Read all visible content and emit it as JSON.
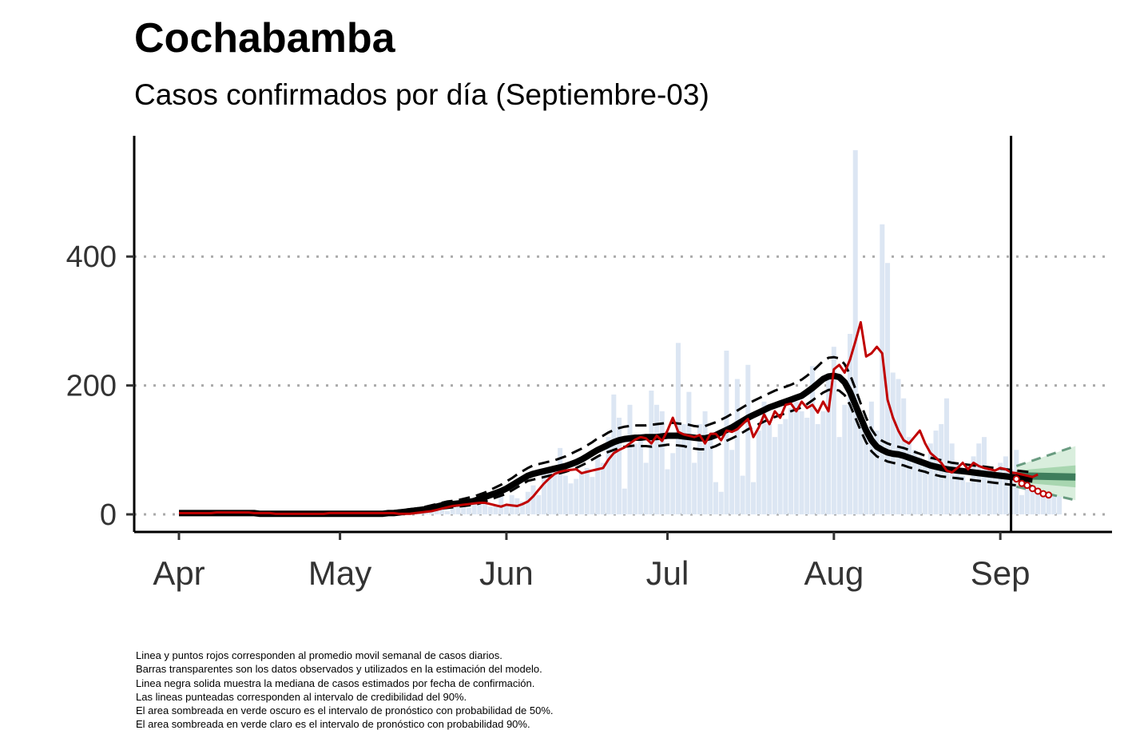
{
  "title": "Cochabamba",
  "subtitle": "Casos confirmados por día (Septiembre-03)",
  "notes": [
    "Linea y puntos rojos corresponden al promedio movil semanal de casos diarios.",
    "Barras transparentes son los datos observados y utilizados en la estimación del modelo.",
    "Linea negra solida muestra la mediana de casos estimados por fecha de confirmación.",
    "Las lineas punteadas corresponden al intervalo de credibilidad del 90%.",
    "El area sombreada en verde oscuro es el intervalo de pronóstico con probabilidad de 50%.",
    "El area sombreada en verde claro es el intervalo de pronóstico con probabilidad 90%."
  ],
  "chart_data": {
    "type": "bar+line",
    "x_axis": {
      "type": "date",
      "ticks": [
        "Apr",
        "May",
        "Jun",
        "Jul",
        "Aug",
        "Sep"
      ],
      "tick_dates": [
        "2020-04-01",
        "2020-05-01",
        "2020-06-01",
        "2020-07-01",
        "2020-08-01",
        "2020-09-01"
      ]
    },
    "y_axis": {
      "ticks": [
        0,
        200,
        400
      ],
      "ylim": [
        -25,
        590
      ]
    },
    "grid": "horizontal dotted",
    "vline_date": "2020-09-03",
    "colors": {
      "bars": "#dce6f3",
      "median": "#000000",
      "ci": "#000000",
      "moving_avg": "#c00000",
      "fc_light": "#d9eedd",
      "fc_mid": "#a8d6b0",
      "fc_dark": "#3e7d5c"
    },
    "bars": {
      "start_date": "2020-04-01",
      "values": [
        1,
        0,
        2,
        0,
        0,
        1,
        3,
        0,
        2,
        1,
        0,
        3,
        2,
        1,
        0,
        2,
        1,
        0,
        1,
        2,
        0,
        1,
        0,
        2,
        1,
        0,
        1,
        0,
        2,
        1,
        1,
        0,
        2,
        1,
        3,
        2,
        0,
        1,
        2,
        0,
        1,
        3,
        2,
        4,
        6,
        8,
        3,
        12,
        10,
        8,
        5,
        14,
        18,
        20,
        10,
        22,
        25,
        18,
        12,
        15,
        28,
        14,
        30,
        25,
        20,
        35,
        45,
        30,
        68,
        65,
        70,
        103,
        60,
        48,
        55,
        66,
        72,
        58,
        90,
        80,
        120,
        186,
        150,
        40,
        170,
        110,
        125,
        80,
        192,
        170,
        160,
        70,
        95,
        266,
        140,
        190,
        80,
        140,
        160,
        120,
        50,
        35,
        254,
        100,
        210,
        60,
        232,
        50,
        130,
        175,
        140,
        120,
        140,
        148,
        165,
        175,
        160,
        150,
        230,
        140,
        160,
        210,
        260,
        120,
        170,
        280,
        565,
        140,
        130,
        175,
        130,
        450,
        390,
        220,
        210,
        180,
        120,
        100,
        90,
        80,
        110,
        130,
        140,
        180,
        110,
        80,
        60,
        50,
        90,
        110,
        120,
        70,
        60,
        80,
        90,
        70,
        100,
        30,
        60,
        50,
        75,
        80,
        70,
        60,
        80
      ],
      "series_name": ""
    },
    "median": {
      "start_date": "2020-04-01",
      "values": [
        2,
        2,
        2,
        2,
        2,
        2,
        2,
        2,
        2,
        2,
        2,
        2,
        2,
        2,
        2,
        1,
        1,
        1,
        1,
        1,
        1,
        1,
        1,
        1,
        1,
        1,
        1,
        1,
        1,
        1,
        1,
        1,
        1,
        1,
        1,
        1,
        1,
        1,
        1,
        2,
        2,
        3,
        4,
        5,
        6,
        7,
        8,
        10,
        12,
        14,
        15,
        16,
        17,
        18,
        19,
        21,
        24,
        27,
        30,
        33,
        36,
        40,
        45,
        50,
        55,
        60,
        63,
        65,
        67,
        69,
        71,
        73,
        75,
        78,
        81,
        85,
        90,
        95,
        100,
        104,
        108,
        112,
        115,
        117,
        118,
        119,
        119,
        120,
        120,
        120,
        121,
        122,
        122,
        122,
        121,
        120,
        119,
        118,
        118,
        120,
        123,
        127,
        131,
        135,
        140,
        145,
        150,
        154,
        158,
        162,
        166,
        169,
        172,
        175,
        178,
        181,
        184,
        190,
        196,
        203,
        210,
        214,
        215,
        213,
        205,
        190,
        170,
        150,
        130,
        115,
        105,
        100,
        96,
        94,
        93,
        91,
        88,
        85,
        82,
        79,
        76,
        74,
        72,
        70,
        69,
        68,
        67,
        66,
        65,
        64,
        63,
        62,
        61,
        60,
        59,
        58,
        57,
        56,
        55,
        54
      ]
    },
    "ci_upper": {
      "start_date": "2020-04-01",
      "values": [
        3,
        3,
        3,
        3,
        3,
        3,
        3,
        3,
        3,
        3,
        3,
        3,
        3,
        3,
        3,
        2,
        2,
        2,
        2,
        2,
        2,
        2,
        2,
        2,
        2,
        2,
        2,
        2,
        2,
        2,
        2,
        2,
        2,
        2,
        2,
        2,
        2,
        2,
        3,
        4,
        5,
        6,
        7,
        8,
        9,
        10,
        12,
        14,
        16,
        18,
        20,
        21,
        22,
        24,
        26,
        28,
        31,
        34,
        38,
        42,
        46,
        51,
        56,
        62,
        67,
        72,
        76,
        78,
        80,
        82,
        84,
        87,
        90,
        94,
        98,
        102,
        107,
        112,
        118,
        122,
        127,
        131,
        134,
        136,
        137,
        138,
        138,
        138,
        139,
        140,
        141,
        142,
        142,
        141,
        140,
        139,
        137,
        136,
        137,
        140,
        143,
        147,
        151,
        156,
        161,
        166,
        171,
        176,
        180,
        184,
        188,
        192,
        195,
        198,
        201,
        205,
        209,
        215,
        222,
        230,
        238,
        243,
        244,
        242,
        233,
        217,
        195,
        172,
        150,
        132,
        120,
        114,
        110,
        107,
        105,
        103,
        100,
        97,
        94,
        91,
        88,
        86,
        84,
        82,
        80,
        79,
        78,
        77,
        76,
        75,
        74,
        73,
        72,
        71,
        70,
        69,
        68,
        67,
        66,
        65
      ]
    },
    "ci_lower": {
      "start_date": "2020-04-01",
      "values": [
        1,
        1,
        1,
        1,
        1,
        1,
        1,
        1,
        1,
        1,
        1,
        1,
        1,
        1,
        1,
        0,
        0,
        0,
        0,
        0,
        0,
        0,
        0,
        0,
        0,
        0,
        0,
        0,
        0,
        0,
        0,
        0,
        0,
        0,
        0,
        0,
        0,
        0,
        0,
        1,
        1,
        1,
        2,
        3,
        4,
        5,
        6,
        7,
        8,
        9,
        10,
        11,
        12,
        13,
        14,
        15,
        17,
        20,
        23,
        26,
        29,
        32,
        37,
        42,
        47,
        52,
        54,
        56,
        58,
        60,
        62,
        64,
        66,
        69,
        72,
        76,
        80,
        85,
        90,
        94,
        97,
        100,
        103,
        105,
        106,
        107,
        106,
        106,
        105,
        106,
        107,
        108,
        108,
        107,
        106,
        104,
        102,
        101,
        101,
        103,
        106,
        110,
        114,
        118,
        122,
        127,
        132,
        136,
        140,
        144,
        148,
        151,
        154,
        157,
        160,
        163,
        166,
        171,
        177,
        183,
        189,
        193,
        194,
        192,
        185,
        170,
        150,
        130,
        112,
        98,
        90,
        86,
        82,
        80,
        78,
        76,
        73,
        71,
        68,
        66,
        63,
        61,
        59,
        58,
        57,
        56,
        55,
        54,
        53,
        52,
        51,
        50,
        49,
        48,
        47,
        46,
        45,
        45,
        44,
        44
      ]
    },
    "moving_avg": {
      "start_date": "2020-04-01",
      "values": [
        2,
        2,
        2,
        2,
        2,
        2,
        2,
        3,
        3,
        3,
        3,
        3,
        3,
        3,
        2,
        2,
        2,
        2,
        1,
        1,
        1,
        1,
        1,
        1,
        1,
        1,
        1,
        1,
        2,
        2,
        2,
        2,
        2,
        2,
        2,
        2,
        2,
        2,
        2,
        2,
        2,
        1,
        1,
        1,
        2,
        3,
        4,
        5,
        7,
        9,
        11,
        13,
        14,
        15,
        16,
        17,
        18,
        18,
        16,
        14,
        12,
        15,
        14,
        13,
        16,
        20,
        28,
        38,
        48,
        56,
        63,
        66,
        68,
        69,
        70,
        64,
        66,
        68,
        70,
        72,
        85,
        95,
        100,
        104,
        110,
        116,
        120,
        118,
        110,
        122,
        114,
        130,
        150,
        128,
        124,
        122,
        120,
        123,
        110,
        125,
        125,
        115,
        130,
        128,
        132,
        140,
        148,
        120,
        135,
        155,
        140,
        160,
        150,
        170,
        172,
        160,
        175,
        165,
        170,
        158,
        175,
        160,
        225,
        232,
        220,
        240,
        268,
        298,
        245,
        250,
        260,
        250,
        178,
        150,
        130,
        115,
        110,
        120,
        130,
        110,
        95,
        88,
        80,
        68,
        65,
        72,
        80,
        70,
        80,
        75,
        72,
        70,
        68,
        72,
        70,
        65,
        64,
        62,
        60,
        58,
        62
      ]
    },
    "forecast_points": {
      "dates": [
        "2020-09-04",
        "2020-09-05",
        "2020-09-06",
        "2020-09-07",
        "2020-09-08",
        "2020-09-09",
        "2020-09-10"
      ],
      "values": [
        55,
        48,
        45,
        40,
        36,
        32,
        30
      ]
    },
    "forecast_band": {
      "dates": [
        "2020-09-04",
        "2020-09-15"
      ],
      "upper90": [
        75,
        106
      ],
      "lower90": [
        43,
        22
      ],
      "upper50": [
        68,
        76
      ],
      "lower50": [
        50,
        42
      ],
      "median": [
        60,
        58
      ]
    }
  }
}
